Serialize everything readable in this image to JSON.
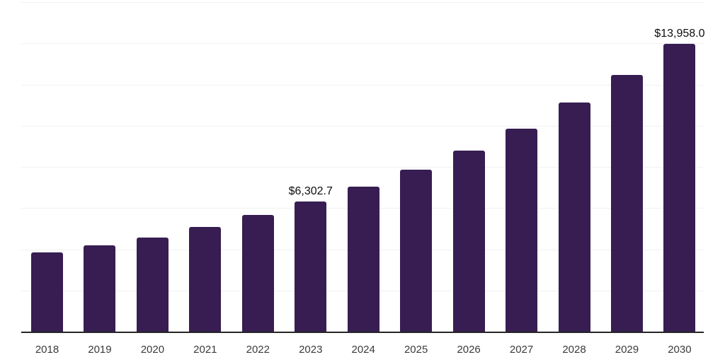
{
  "chart_data": {
    "type": "bar",
    "title": "",
    "xlabel": "",
    "ylabel": "",
    "categories": [
      "2018",
      "2019",
      "2020",
      "2021",
      "2022",
      "2023",
      "2024",
      "2025",
      "2026",
      "2027",
      "2028",
      "2029",
      "2030"
    ],
    "values": [
      3850,
      4190,
      4570,
      5080,
      5660,
      6302.7,
      7040,
      7860,
      8790,
      9850,
      11120,
      12460,
      13958.0
    ],
    "value_labels": [
      {
        "category": "2023",
        "label": "$6,302.7"
      },
      {
        "category": "2030",
        "label": "$13,958.0"
      }
    ],
    "ylim": [
      0,
      16000
    ],
    "gridline_step": 2000,
    "grid": "horizontal-only",
    "legend": "none",
    "colors": {
      "bar": "#371d52",
      "background": "#ffffff",
      "gridline": "#f1f1f3",
      "axis_line": "#262626",
      "tick_label": "#3a3a3a",
      "value_label": "#0d0d0d"
    }
  }
}
